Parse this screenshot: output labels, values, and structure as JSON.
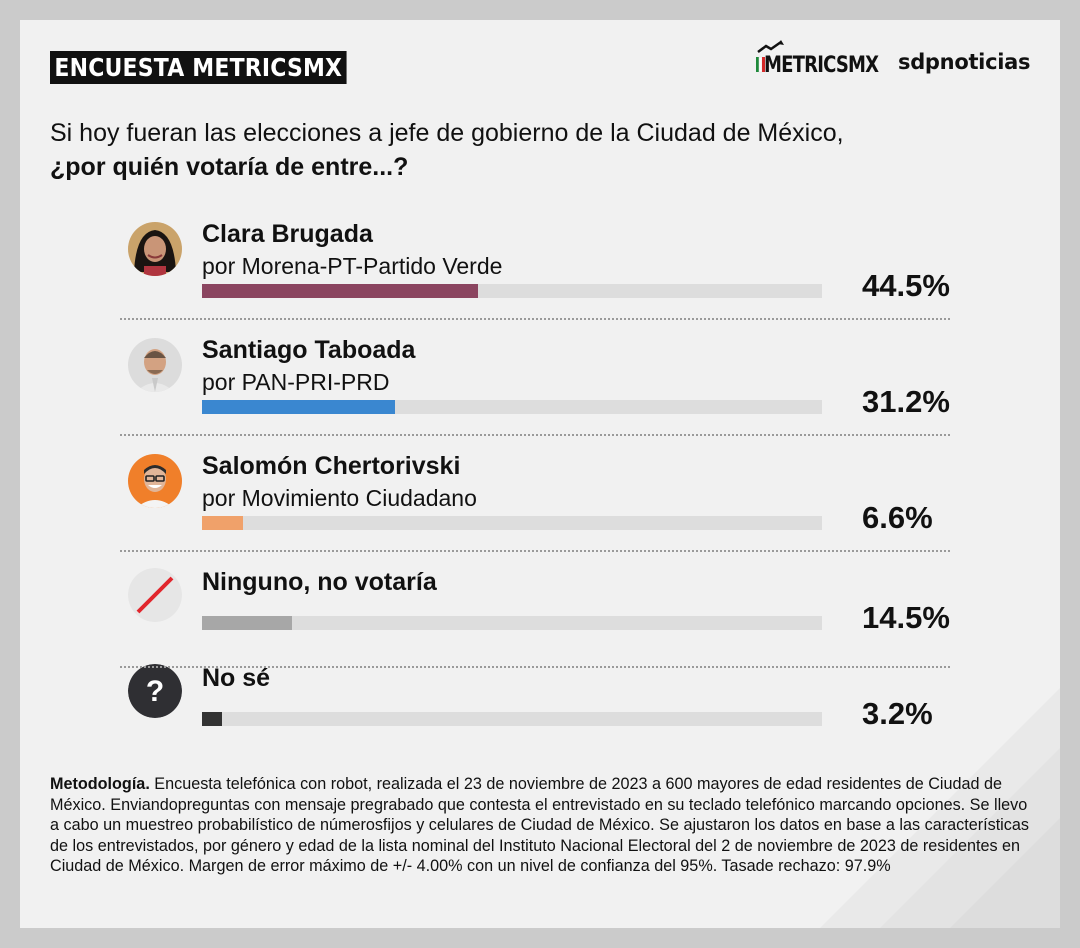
{
  "header": {
    "tag": "ENCUESTA METRICSMX",
    "logo_metrics": "METRICSMX",
    "logo_sdp": "sdpnoticias"
  },
  "question": {
    "line1": "Si hoy fueran las elecciones a jefe de gobierno de la Ciudad de México,",
    "line2": "¿por quién votaría de entre...?"
  },
  "chart_data": {
    "type": "bar",
    "categories": [
      "Clara Brugada",
      "Santiago Taboada",
      "Salomón Chertorivski",
      "Ninguno, no votaría",
      "No sé"
    ],
    "subtitles": [
      "por Morena-PT-Partido Verde",
      "por PAN-PRI-PRD",
      "por Movimiento Ciudadano",
      "",
      ""
    ],
    "values": [
      44.5,
      31.2,
      6.6,
      14.5,
      3.2
    ],
    "labels": [
      "44.5%",
      "31.2%",
      "6.6%",
      "14.5%",
      "3.2%"
    ],
    "colors": [
      "#8b4560",
      "#3a87d0",
      "#f0a16a",
      "#a7a7a7",
      "#333333"
    ],
    "icons": [
      "avatar-clara-brugada-icon",
      "avatar-santiago-taboada-icon",
      "avatar-salomon-chertorivski-icon",
      "no-vote-slash-icon",
      "question-mark-icon"
    ],
    "ylim": [
      0,
      100
    ]
  },
  "methodology": {
    "label": "Metodología.",
    "text": " Encuesta telefónica con robot, realizada el 23 de noviembre de 2023 a 600 mayores de edad residentes de Ciudad de México. Enviandopreguntas con mensaje pregrabado que contesta el entrevistado en su teclado telefónico marcando opciones. Se llevo a cabo un muestreo probabilístico de númerosfijos y celulares de Ciudad de México. Se ajustaron los datos en base a las características de los entrevistados, por género y edad de la lista nominal del Instituto Nacional Electoral del 2 de noviembre de 2023 de residentes en Ciudad de México. Margen de error máximo de +/- 4.00% con un nivel de confianza del 95%. Tasade rechazo: 97.9%"
  }
}
